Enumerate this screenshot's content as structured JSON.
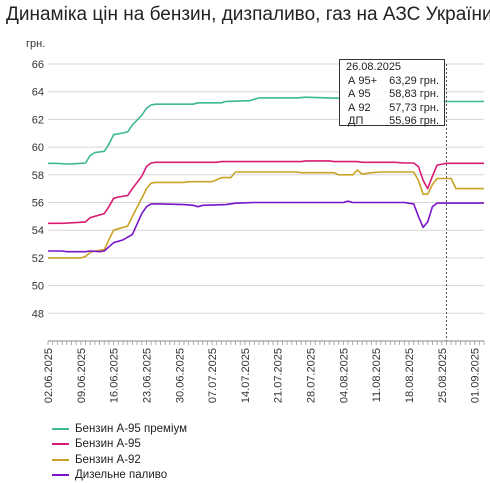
{
  "title": "Динаміка цін на бензин, дизпаливо, газ на АЗС України",
  "chart_data": {
    "type": "line",
    "ylabel": "грн.",
    "ylim": [
      46,
      66
    ],
    "yticks": [
      48,
      50,
      52,
      54,
      56,
      58,
      60,
      62,
      64,
      66
    ],
    "grid": "horizontal",
    "legend_position": "bottom",
    "x_start": "2025-06-02",
    "x_end": "2025-09-03",
    "xtick_labels": [
      "02.06.2025",
      "09.06.2025",
      "16.06.2025",
      "23.06.2025",
      "30.06.2025",
      "07.07.2025",
      "14.07.2025",
      "21.07.2025",
      "28.07.2025",
      "04.08.2025",
      "11.08.2025",
      "18.08.2025",
      "25.08.2025",
      "01.09.2025"
    ],
    "series": [
      {
        "name": "Бензин А-95 преміум",
        "color": "#3cb896",
        "points": [
          [
            "2025-06-02",
            58.83
          ],
          [
            "2025-06-04",
            58.82
          ],
          [
            "2025-06-06",
            58.78
          ],
          [
            "2025-06-08",
            58.8
          ],
          [
            "2025-06-10",
            58.85
          ],
          [
            "2025-06-11",
            59.4
          ],
          [
            "2025-06-12",
            59.6
          ],
          [
            "2025-06-14",
            59.7
          ],
          [
            "2025-06-15",
            60.2
          ],
          [
            "2025-06-16",
            60.9
          ],
          [
            "2025-06-17",
            60.95
          ],
          [
            "2025-06-19",
            61.1
          ],
          [
            "2025-06-20",
            61.6
          ],
          [
            "2025-06-22",
            62.3
          ],
          [
            "2025-06-23",
            62.8
          ],
          [
            "2025-06-24",
            63.05
          ],
          [
            "2025-06-25",
            63.1
          ],
          [
            "2025-07-01",
            63.1
          ],
          [
            "2025-07-03",
            63.1
          ],
          [
            "2025-07-04",
            63.2
          ],
          [
            "2025-07-09",
            63.2
          ],
          [
            "2025-07-10",
            63.3
          ],
          [
            "2025-07-15",
            63.35
          ],
          [
            "2025-07-17",
            63.55
          ],
          [
            "2025-07-25",
            63.55
          ],
          [
            "2025-07-27",
            63.6
          ],
          [
            "2025-08-24",
            63.29
          ],
          [
            "2025-08-26",
            63.29
          ],
          [
            "2025-09-03",
            63.29
          ]
        ]
      },
      {
        "name": "Бензин А-95",
        "color": "#d81b74",
        "points": [
          [
            "2025-06-02",
            54.5
          ],
          [
            "2025-06-05",
            54.5
          ],
          [
            "2025-06-08",
            54.55
          ],
          [
            "2025-06-10",
            54.6
          ],
          [
            "2025-06-11",
            54.9
          ],
          [
            "2025-06-12",
            55.0
          ],
          [
            "2025-06-14",
            55.2
          ],
          [
            "2025-06-15",
            55.7
          ],
          [
            "2025-06-16",
            56.3
          ],
          [
            "2025-06-17",
            56.4
          ],
          [
            "2025-06-19",
            56.5
          ],
          [
            "2025-06-20",
            57.0
          ],
          [
            "2025-06-22",
            57.9
          ],
          [
            "2025-06-23",
            58.6
          ],
          [
            "2025-06-24",
            58.85
          ],
          [
            "2025-06-25",
            58.9
          ],
          [
            "2025-07-08",
            58.9
          ],
          [
            "2025-07-09",
            58.95
          ],
          [
            "2025-07-26",
            58.95
          ],
          [
            "2025-07-27",
            59.0
          ],
          [
            "2025-08-01",
            59.0
          ],
          [
            "2025-08-02",
            58.95
          ],
          [
            "2025-08-07",
            58.95
          ],
          [
            "2025-08-08",
            58.9
          ],
          [
            "2025-08-15",
            58.9
          ],
          [
            "2025-08-17",
            58.85
          ],
          [
            "2025-08-19",
            58.85
          ],
          [
            "2025-08-20",
            58.6
          ],
          [
            "2025-08-21",
            57.6
          ],
          [
            "2025-08-22",
            57.0
          ],
          [
            "2025-08-23",
            57.9
          ],
          [
            "2025-08-24",
            58.7
          ],
          [
            "2025-08-26",
            58.83
          ],
          [
            "2025-09-03",
            58.83
          ]
        ]
      },
      {
        "name": "Бензин А-92",
        "color": "#c9a227",
        "points": [
          [
            "2025-06-02",
            52.0
          ],
          [
            "2025-06-09",
            52.0
          ],
          [
            "2025-06-10",
            52.1
          ],
          [
            "2025-06-11",
            52.4
          ],
          [
            "2025-06-12",
            52.5
          ],
          [
            "2025-06-14",
            52.6
          ],
          [
            "2025-06-15",
            53.3
          ],
          [
            "2025-06-16",
            54.0
          ],
          [
            "2025-06-17",
            54.1
          ],
          [
            "2025-06-19",
            54.3
          ],
          [
            "2025-06-20",
            55.0
          ],
          [
            "2025-06-22",
            56.3
          ],
          [
            "2025-06-23",
            57.0
          ],
          [
            "2025-06-24",
            57.4
          ],
          [
            "2025-06-25",
            57.45
          ],
          [
            "2025-07-01",
            57.45
          ],
          [
            "2025-07-02",
            57.5
          ],
          [
            "2025-07-07",
            57.5
          ],
          [
            "2025-07-09",
            57.8
          ],
          [
            "2025-07-11",
            57.8
          ],
          [
            "2025-07-12",
            58.2
          ],
          [
            "2025-07-25",
            58.2
          ],
          [
            "2025-07-26",
            58.15
          ],
          [
            "2025-08-02",
            58.15
          ],
          [
            "2025-08-03",
            58.0
          ],
          [
            "2025-08-06",
            58.0
          ],
          [
            "2025-08-07",
            58.35
          ],
          [
            "2025-08-08",
            58.05
          ],
          [
            "2025-08-10",
            58.15
          ],
          [
            "2025-08-12",
            58.2
          ],
          [
            "2025-08-19",
            58.2
          ],
          [
            "2025-08-20",
            57.6
          ],
          [
            "2025-08-21",
            56.6
          ],
          [
            "2025-08-22",
            56.6
          ],
          [
            "2025-08-23",
            57.3
          ],
          [
            "2025-08-24",
            57.73
          ],
          [
            "2025-08-27",
            57.73
          ],
          [
            "2025-08-28",
            57.0
          ],
          [
            "2025-09-03",
            57.0
          ]
        ]
      },
      {
        "name": "Дизельне паливо",
        "color": "#7a14c8",
        "points": [
          [
            "2025-06-02",
            52.5
          ],
          [
            "2025-06-05",
            52.5
          ],
          [
            "2025-06-06",
            52.45
          ],
          [
            "2025-06-10",
            52.45
          ],
          [
            "2025-06-11",
            52.5
          ],
          [
            "2025-06-13",
            52.45
          ],
          [
            "2025-06-14",
            52.5
          ],
          [
            "2025-06-15",
            52.8
          ],
          [
            "2025-06-16",
            53.1
          ],
          [
            "2025-06-18",
            53.3
          ],
          [
            "2025-06-20",
            53.7
          ],
          [
            "2025-06-22",
            55.2
          ],
          [
            "2025-06-23",
            55.7
          ],
          [
            "2025-06-24",
            55.9
          ],
          [
            "2025-06-26",
            55.9
          ],
          [
            "2025-07-01",
            55.85
          ],
          [
            "2025-07-03",
            55.8
          ],
          [
            "2025-07-04",
            55.7
          ],
          [
            "2025-07-05",
            55.8
          ],
          [
            "2025-07-10",
            55.85
          ],
          [
            "2025-07-12",
            55.95
          ],
          [
            "2025-07-16",
            56.0
          ],
          [
            "2025-08-04",
            56.0
          ],
          [
            "2025-08-05",
            56.1
          ],
          [
            "2025-08-06",
            56.0
          ],
          [
            "2025-08-17",
            56.0
          ],
          [
            "2025-08-19",
            55.9
          ],
          [
            "2025-08-20",
            55.0
          ],
          [
            "2025-08-21",
            54.2
          ],
          [
            "2025-08-22",
            54.6
          ],
          [
            "2025-08-23",
            55.7
          ],
          [
            "2025-08-24",
            55.96
          ],
          [
            "2025-09-03",
            55.96
          ]
        ]
      }
    ],
    "tooltip": {
      "date": "26.08.2025",
      "rows": [
        {
          "label": "А 95+",
          "value": "63,29 грн."
        },
        {
          "label": "А 95",
          "value": "58,83 грн."
        },
        {
          "label": "А 92",
          "value": "57,73 грн."
        },
        {
          "label": "ДП",
          "value": "55,96 грн."
        }
      ]
    },
    "cursor_date": "2025-08-26"
  }
}
